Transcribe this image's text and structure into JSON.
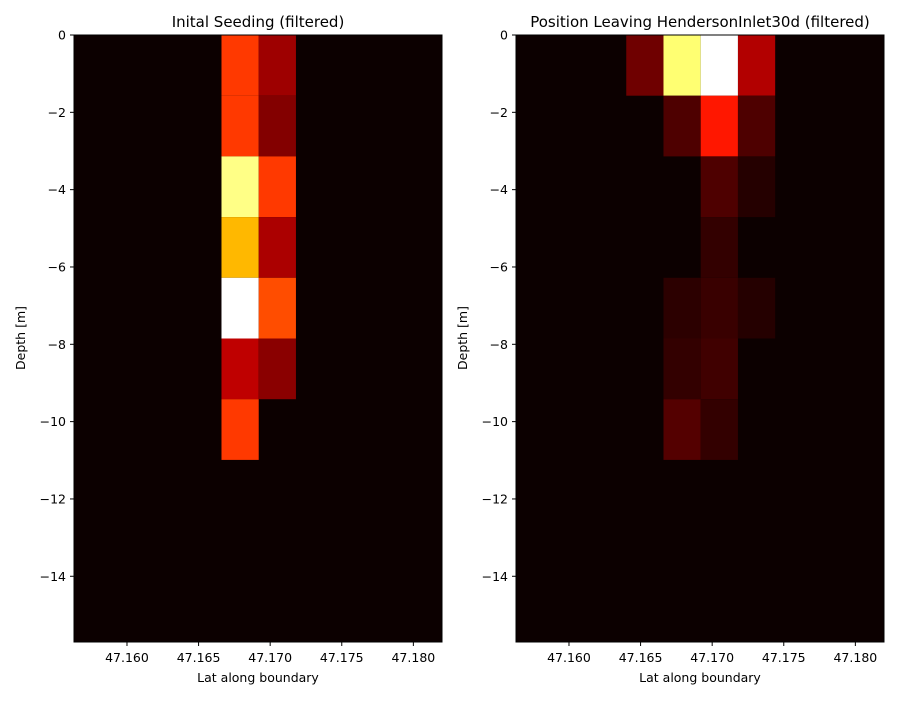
{
  "chart_data": [
    {
      "type": "heatmap",
      "title": "Inital Seeding (filtered)",
      "xlabel": "Lat along boundary",
      "ylabel": "Depth [m]",
      "xlim": [
        47.1563,
        47.182
      ],
      "ylim": [
        -15.7,
        0
      ],
      "xticks": [
        47.16,
        47.165,
        47.17,
        47.175,
        47.18
      ],
      "xtick_labels": [
        "47.160",
        "47.165",
        "47.170",
        "47.175",
        "47.180"
      ],
      "yticks": [
        0,
        -2,
        -4,
        -6,
        -8,
        -10,
        -12,
        -14
      ],
      "ytick_labels": [
        "0",
        "−2",
        "−4",
        "−6",
        "−8",
        "−10",
        "−12",
        "−14"
      ],
      "colormap": "hot",
      "background": "#0c0000",
      "cells": [
        {
          "x0": 47.1666,
          "x1": 47.1692,
          "y0": -1.57,
          "y1": 0,
          "value": 0.45
        },
        {
          "x0": 47.1692,
          "x1": 47.1718,
          "y0": -1.57,
          "y1": 0,
          "value": 0.22
        },
        {
          "x0": 47.1666,
          "x1": 47.1692,
          "y0": -3.14,
          "y1": -1.57,
          "value": 0.45
        },
        {
          "x0": 47.1692,
          "x1": 47.1718,
          "y0": -3.14,
          "y1": -1.57,
          "value": 0.18
        },
        {
          "x0": 47.1666,
          "x1": 47.1692,
          "y0": -4.71,
          "y1": -3.14,
          "value": 0.88
        },
        {
          "x0": 47.1692,
          "x1": 47.1718,
          "y0": -4.71,
          "y1": -3.14,
          "value": 0.45
        },
        {
          "x0": 47.1666,
          "x1": 47.1692,
          "y0": -6.28,
          "y1": -4.71,
          "value": 0.64
        },
        {
          "x0": 47.1692,
          "x1": 47.1718,
          "y0": -6.28,
          "y1": -4.71,
          "value": 0.24
        },
        {
          "x0": 47.1666,
          "x1": 47.1692,
          "y0": -7.85,
          "y1": -6.28,
          "value": 1.0
        },
        {
          "x0": 47.1692,
          "x1": 47.1718,
          "y0": -7.85,
          "y1": -6.28,
          "value": 0.48
        },
        {
          "x0": 47.1666,
          "x1": 47.1692,
          "y0": -9.42,
          "y1": -7.85,
          "value": 0.27
        },
        {
          "x0": 47.1692,
          "x1": 47.1718,
          "y0": -9.42,
          "y1": -7.85,
          "value": 0.19
        },
        {
          "x0": 47.1666,
          "x1": 47.1692,
          "y0": -10.99,
          "y1": -9.42,
          "value": 0.45
        }
      ]
    },
    {
      "type": "heatmap",
      "title": "Position Leaving HendersonInlet30d (filtered)",
      "xlabel": "Lat along boundary",
      "ylabel": "Depth [m]",
      "xlim": [
        47.1563,
        47.182
      ],
      "ylim": [
        -15.7,
        0
      ],
      "xticks": [
        47.16,
        47.165,
        47.17,
        47.175,
        47.18
      ],
      "xtick_labels": [
        "47.160",
        "47.165",
        "47.170",
        "47.175",
        "47.180"
      ],
      "yticks": [
        0,
        -2,
        -4,
        -6,
        -8,
        -10,
        -12,
        -14
      ],
      "ytick_labels": [
        "0",
        "−2",
        "−4",
        "−6",
        "−8",
        "−10",
        "−12",
        "−14"
      ],
      "colormap": "hot",
      "background": "#0c0000",
      "cells": [
        {
          "x0": 47.164,
          "x1": 47.1666,
          "y0": -1.57,
          "y1": 0,
          "value": 0.15
        },
        {
          "x0": 47.1666,
          "x1": 47.1692,
          "y0": -1.57,
          "y1": 0,
          "value": 0.86
        },
        {
          "x0": 47.1692,
          "x1": 47.1718,
          "y0": -1.57,
          "y1": 0,
          "value": 1.0
        },
        {
          "x0": 47.1718,
          "x1": 47.1744,
          "y0": -1.57,
          "y1": 0,
          "value": 0.25
        },
        {
          "x0": 47.1666,
          "x1": 47.1692,
          "y0": -3.14,
          "y1": -1.57,
          "value": 0.1
        },
        {
          "x0": 47.1692,
          "x1": 47.1718,
          "y0": -3.14,
          "y1": -1.57,
          "value": 0.4
        },
        {
          "x0": 47.1718,
          "x1": 47.1744,
          "y0": -3.14,
          "y1": -1.57,
          "value": 0.1
        },
        {
          "x0": 47.1692,
          "x1": 47.1718,
          "y0": -4.71,
          "y1": -3.14,
          "value": 0.1
        },
        {
          "x0": 47.1718,
          "x1": 47.1744,
          "y0": -4.71,
          "y1": -3.14,
          "value": 0.04
        },
        {
          "x0": 47.1692,
          "x1": 47.1718,
          "y0": -6.28,
          "y1": -4.71,
          "value": 0.06
        },
        {
          "x0": 47.1666,
          "x1": 47.1692,
          "y0": -7.85,
          "y1": -6.28,
          "value": 0.05
        },
        {
          "x0": 47.1692,
          "x1": 47.1718,
          "y0": -7.85,
          "y1": -6.28,
          "value": 0.07
        },
        {
          "x0": 47.1718,
          "x1": 47.1744,
          "y0": -7.85,
          "y1": -6.28,
          "value": 0.04
        },
        {
          "x0": 47.1666,
          "x1": 47.1692,
          "y0": -9.42,
          "y1": -7.85,
          "value": 0.06
        },
        {
          "x0": 47.1692,
          "x1": 47.1718,
          "y0": -9.42,
          "y1": -7.85,
          "value": 0.08
        },
        {
          "x0": 47.1666,
          "x1": 47.1692,
          "y0": -10.99,
          "y1": -9.42,
          "value": 0.11
        },
        {
          "x0": 47.1692,
          "x1": 47.1718,
          "y0": -10.99,
          "y1": -9.42,
          "value": 0.06
        }
      ]
    }
  ]
}
